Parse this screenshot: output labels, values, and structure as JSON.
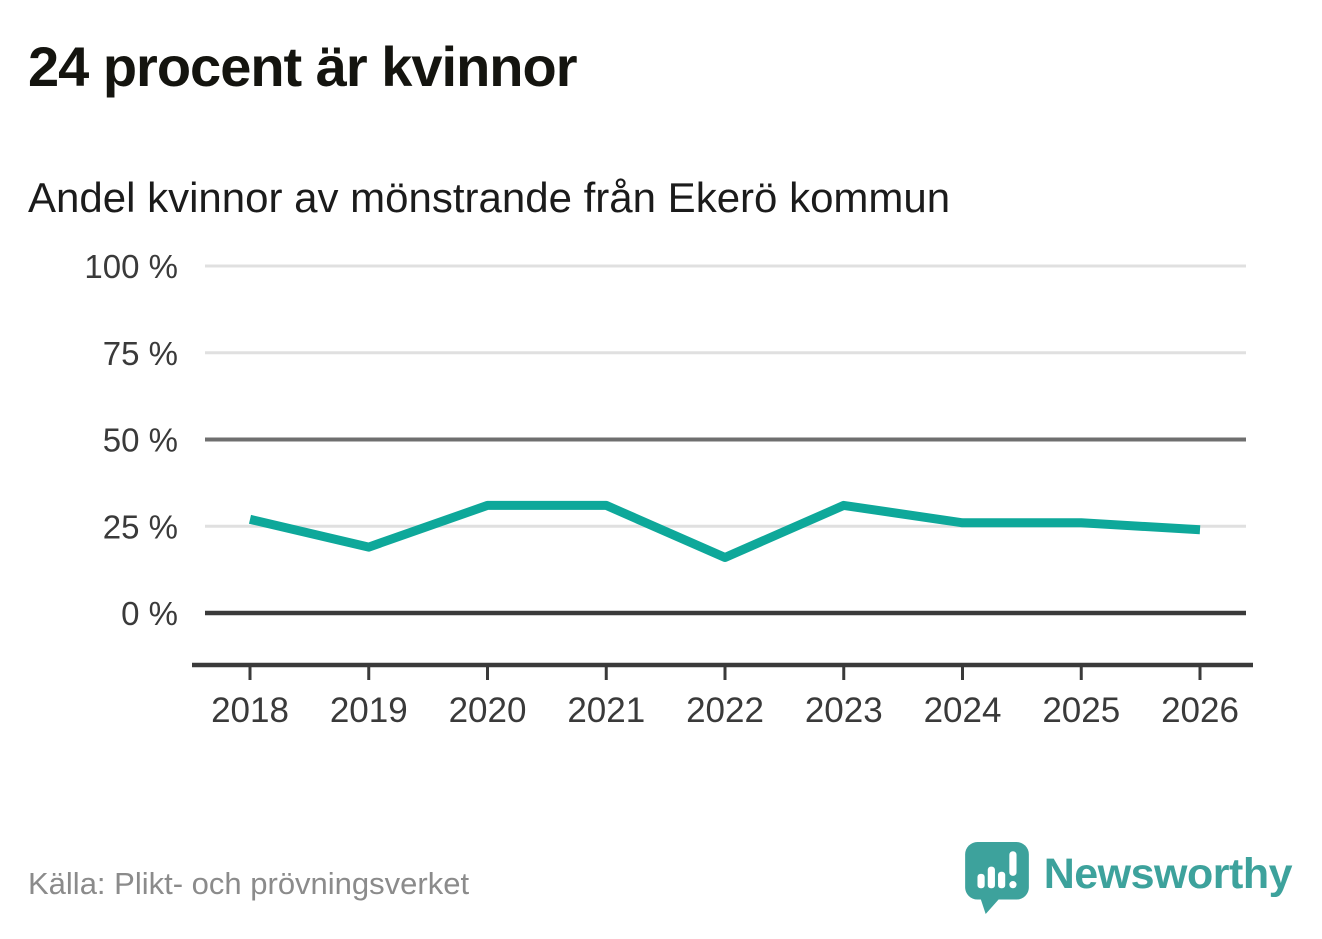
{
  "title": "24 procent är kvinnor",
  "subtitle": "Andel kvinnor av mönstrande från Ekerö kommun",
  "source": "Källa: Plikt- och prövningsverket",
  "brand": {
    "name": "Newsworthy",
    "color": "#3da29c",
    "icon": "speech-bubble-bar-chart-exclamation"
  },
  "chart_data": {
    "type": "line",
    "title": "24 procent är kvinnor",
    "subtitle": "Andel kvinnor av mönstrande från Ekerö kommun",
    "categories": [
      "2018",
      "2019",
      "2020",
      "2021",
      "2022",
      "2023",
      "2024",
      "2025",
      "2026"
    ],
    "series": [
      {
        "name": "Andel kvinnor av mönstrande",
        "color": "#0ea89a",
        "values": [
          27,
          19,
          31,
          31,
          16,
          31,
          26,
          26,
          24
        ]
      }
    ],
    "unit": "%",
    "ylim": [
      0,
      100
    ],
    "yticks": [
      0,
      25,
      50,
      75,
      100
    ],
    "ytick_labels": [
      "0 %",
      "25 %",
      "50 %",
      "75 %",
      "100 %"
    ],
    "emphasized_gridlines": [
      50
    ],
    "baseline_gridline": 0,
    "grid": true,
    "legend": false,
    "source": "Källa: Plikt- och prövningsverket"
  }
}
